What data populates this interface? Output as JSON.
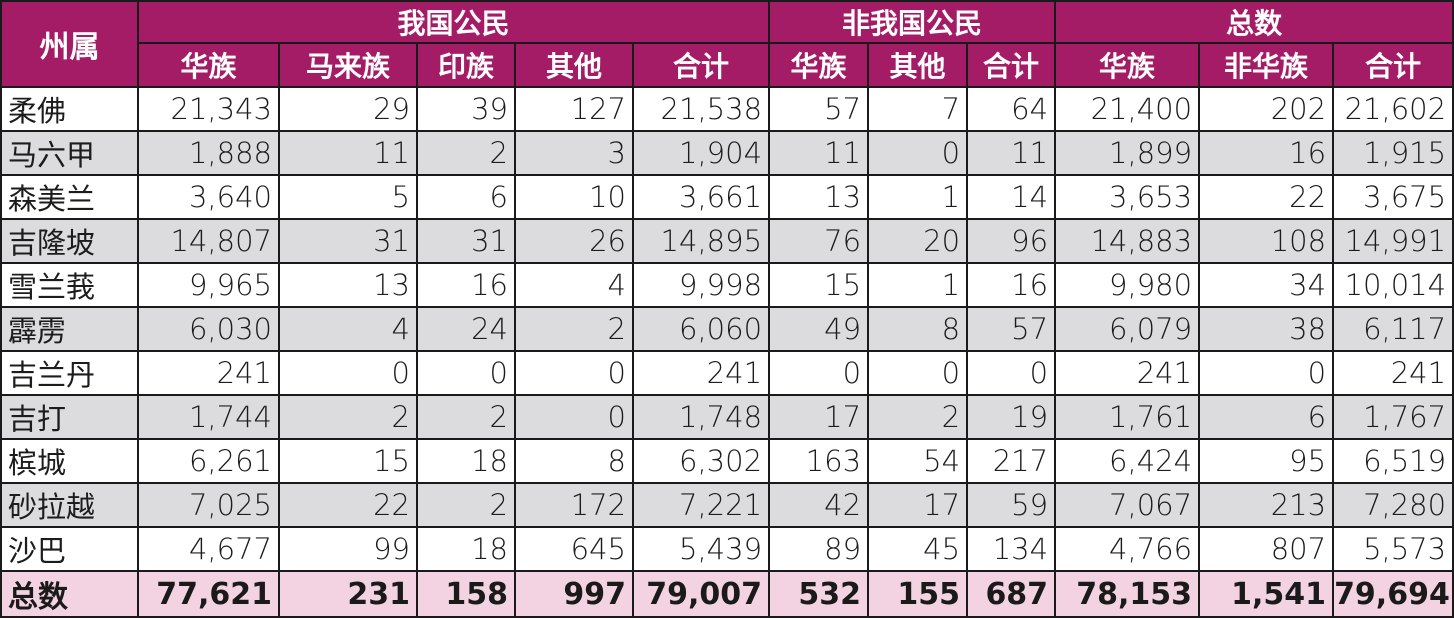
{
  "header": {
    "state_label": "州属",
    "groups": [
      "我国公民",
      "非我国公民",
      "总数"
    ],
    "columns": [
      "华族",
      "马来族",
      "印族",
      "其他",
      "合计",
      "华族",
      "其他",
      "合计",
      "华族",
      "非华族",
      "合计"
    ]
  },
  "rows": [
    {
      "state": "柔佛",
      "values": [
        "21,343",
        "29",
        "39",
        "127",
        "21,538",
        "57",
        "7",
        "64",
        "21,400",
        "202",
        "21,602"
      ]
    },
    {
      "state": "马六甲",
      "values": [
        "1,888",
        "11",
        "2",
        "3",
        "1,904",
        "11",
        "0",
        "11",
        "1,899",
        "16",
        "1,915"
      ]
    },
    {
      "state": "森美兰",
      "values": [
        "3,640",
        "5",
        "6",
        "10",
        "3,661",
        "13",
        "1",
        "14",
        "3,653",
        "22",
        "3,675"
      ]
    },
    {
      "state": "吉隆坡",
      "values": [
        "14,807",
        "31",
        "31",
        "26",
        "14,895",
        "76",
        "20",
        "96",
        "14,883",
        "108",
        "14,991"
      ]
    },
    {
      "state": "雪兰莪",
      "values": [
        "9,965",
        "13",
        "16",
        "4",
        "9,998",
        "15",
        "1",
        "16",
        "9,980",
        "34",
        "10,014"
      ]
    },
    {
      "state": "霹雳",
      "values": [
        "6,030",
        "4",
        "24",
        "2",
        "6,060",
        "49",
        "8",
        "57",
        "6,079",
        "38",
        "6,117"
      ]
    },
    {
      "state": "吉兰丹",
      "values": [
        "241",
        "0",
        "0",
        "0",
        "241",
        "0",
        "0",
        "0",
        "241",
        "0",
        "241"
      ]
    },
    {
      "state": "吉打",
      "values": [
        "1,744",
        "2",
        "2",
        "0",
        "1,748",
        "17",
        "2",
        "19",
        "1,761",
        "6",
        "1,767"
      ]
    },
    {
      "state": "槟城",
      "values": [
        "6,261",
        "15",
        "18",
        "8",
        "6,302",
        "163",
        "54",
        "217",
        "6,424",
        "95",
        "6,519"
      ]
    },
    {
      "state": "砂拉越",
      "values": [
        "7,025",
        "22",
        "2",
        "172",
        "7,221",
        "42",
        "17",
        "59",
        "7,067",
        "213",
        "7,280"
      ]
    },
    {
      "state": "沙巴",
      "values": [
        "4,677",
        "99",
        "18",
        "645",
        "5,439",
        "89",
        "45",
        "134",
        "4,766",
        "807",
        "5,573"
      ]
    }
  ],
  "total": {
    "state": "总数",
    "values": [
      "77,621",
      "231",
      "158",
      "997",
      "79,007",
      "532",
      "155",
      "687",
      "78,153",
      "1,541",
      "79,694"
    ]
  },
  "colors": {
    "header_bg": "#a51c66",
    "alt_row_bg": "#dcdcdf",
    "total_row_bg": "#f3d3e2"
  }
}
